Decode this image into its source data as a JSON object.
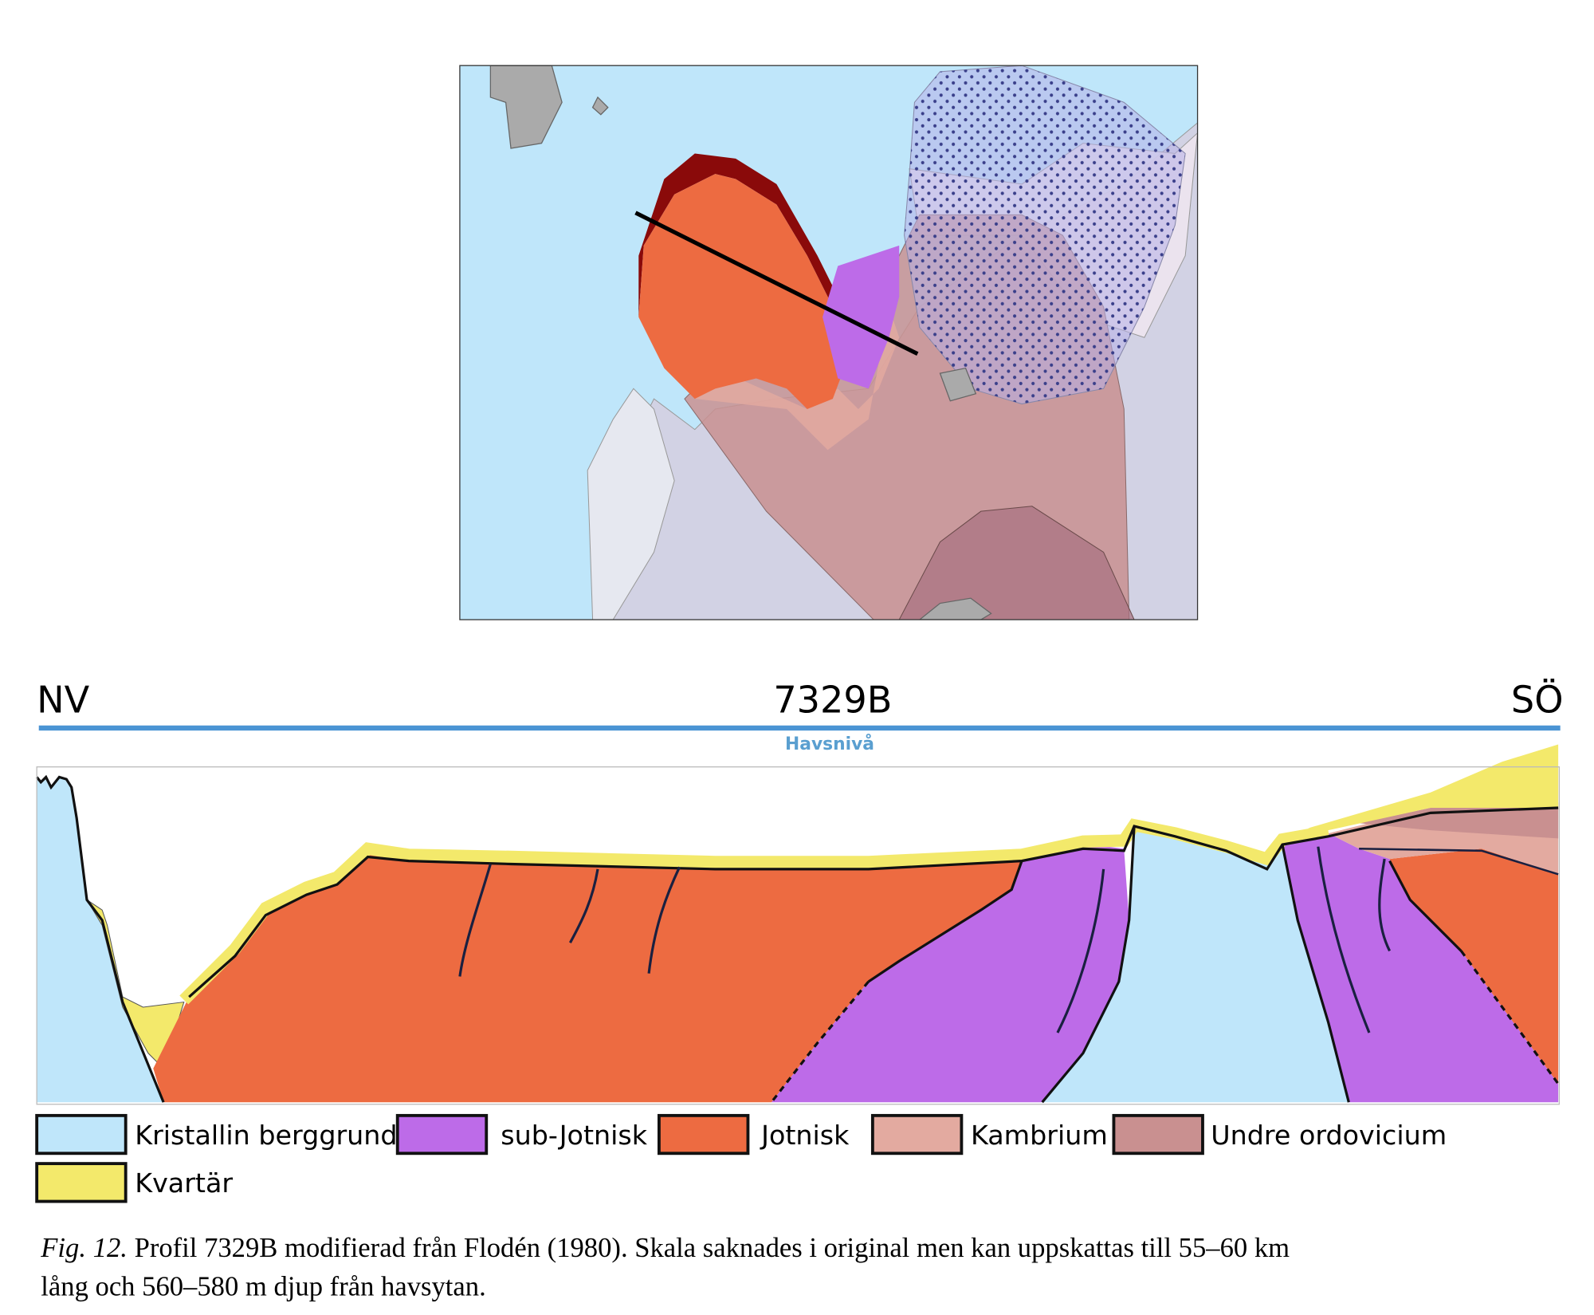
{
  "profile": {
    "left_label": "NV",
    "title": "7329B",
    "right_label": "SÖ",
    "sea_level": "Havsnivå"
  },
  "legend": [
    {
      "label": "Kristallin berggrund",
      "color": "#bfe6fa"
    },
    {
      "label": "sub-Jotnisk",
      "color": "#bd6be8"
    },
    {
      "label": "Jotnisk",
      "color": "#ed6b41"
    },
    {
      "label": "Kambrium",
      "color": "#e3aaa0"
    },
    {
      "label": "Undre ordovicium",
      "color": "#c99090"
    },
    {
      "label": "Kvartär",
      "color": "#f3e96b"
    }
  ],
  "caption": {
    "label": "Fig. 12.",
    "lines": [
      "Profil 7329B modifierad från Flodén (1980). Skala saknades i original men kan uppskattas till 55–60 km",
      "lång och 560–580 m djup från havsytan."
    ]
  }
}
